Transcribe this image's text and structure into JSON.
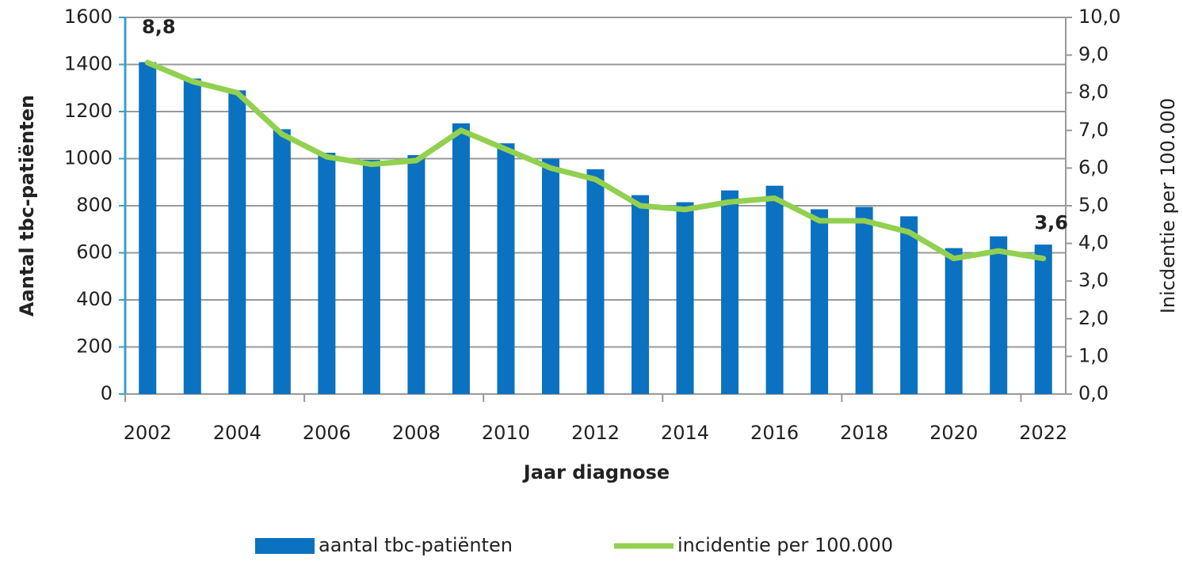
{
  "chart_data": {
    "type": "bar",
    "x_label": "Jaar diagnose",
    "y_label": "Aantal tbc-patiënten",
    "y2_label": "Inicdentie per 100.000",
    "categories": [
      "2002",
      null,
      "2004",
      null,
      "2006",
      null,
      "2008",
      null,
      "2010",
      null,
      "2012",
      null,
      "2014",
      null,
      "2016",
      null,
      "2018",
      null,
      "2020",
      null,
      "2022"
    ],
    "series": [
      {
        "name": "aantal tbc-patiënten",
        "type": "bar",
        "color": "#0a72c0",
        "values": [
          1410,
          1340,
          1290,
          1125,
          1025,
          995,
          1015,
          1150,
          1065,
          1000,
          955,
          845,
          815,
          865,
          885,
          785,
          795,
          755,
          620,
          670,
          635
        ]
      },
      {
        "name": "incidentie per 100.000",
        "type": "line",
        "axis": "y2",
        "color": "#92d050",
        "values": [
          8.8,
          8.3,
          8.0,
          6.9,
          6.3,
          6.1,
          6.2,
          7.0,
          6.5,
          6.0,
          5.7,
          5.0,
          4.9,
          5.1,
          5.2,
          4.6,
          4.6,
          4.3,
          3.6,
          3.8,
          3.6
        ],
        "value_labels": [
          "8,8",
          null,
          null,
          null,
          null,
          null,
          null,
          null,
          null,
          null,
          null,
          null,
          null,
          null,
          null,
          null,
          null,
          null,
          null,
          null,
          "3,6"
        ]
      }
    ],
    "ylim": [
      0,
      1600
    ],
    "yticks": [
      0,
      200,
      400,
      600,
      800,
      1000,
      1200,
      1400,
      1600
    ],
    "y2lim": [
      0,
      10
    ],
    "y2ticks": [
      {
        "value": 0,
        "label": "0,0"
      },
      {
        "value": 1,
        "label": "1,0"
      },
      {
        "value": 2,
        "label": "2,0"
      },
      {
        "value": 3,
        "label": "3,0"
      },
      {
        "value": 4,
        "label": "4,0"
      },
      {
        "value": 5,
        "label": "5,0"
      },
      {
        "value": 6,
        "label": "6,0"
      },
      {
        "value": 7,
        "label": "7,0"
      },
      {
        "value": 8,
        "label": "8,0"
      },
      {
        "value": 9,
        "label": "9,0"
      },
      {
        "value": 10,
        "label": "10,0"
      }
    ],
    "grid": true,
    "legend": "bottom"
  }
}
